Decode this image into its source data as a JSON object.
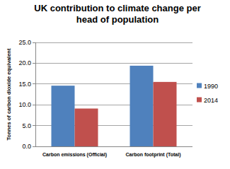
{
  "chart_data": {
    "type": "bar",
    "title": "UK contribution to climate change per head of population",
    "y_label": "Tonnes of carbon dioxide equivalent",
    "categories": [
      "Carbon emissions (Official)",
      "Carbon footprint (Total)"
    ],
    "series": [
      {
        "name": "1990",
        "color": "#4f81bd",
        "values": [
          14.6,
          19.4
        ]
      },
      {
        "name": "2014",
        "color": "#c0504d",
        "values": [
          9.1,
          15.5
        ]
      }
    ],
    "ylim": [
      0,
      25
    ],
    "yticks": [
      {
        "value": 0,
        "label": "0.0"
      },
      {
        "value": 5,
        "label": "5.0"
      },
      {
        "value": 10,
        "label": "10.0"
      },
      {
        "value": 15,
        "label": "15.0"
      },
      {
        "value": 20,
        "label": "20.0"
      },
      {
        "value": 25,
        "label": "25.0"
      }
    ],
    "grid": true,
    "legend": "right"
  }
}
